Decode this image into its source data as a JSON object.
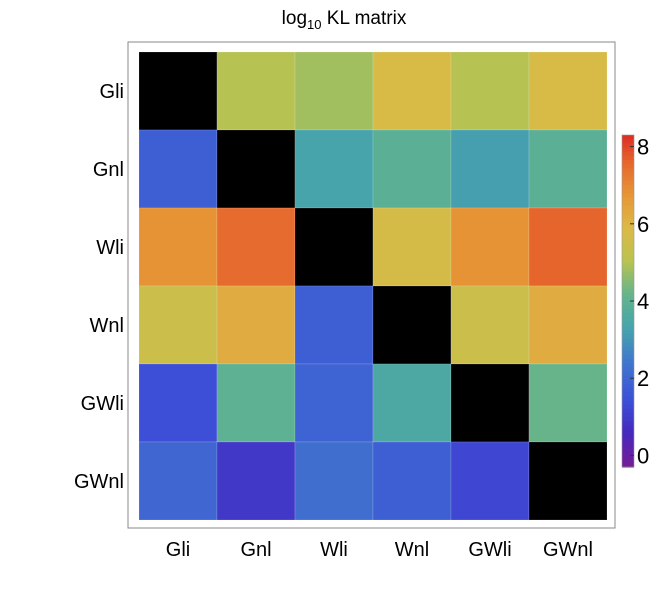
{
  "chart_data": {
    "type": "heatmap",
    "title_main": "log",
    "title_sub": "10",
    "title_rest": " KL matrix",
    "row_labels": [
      "Gli",
      "Gnl",
      "Wli",
      "Wnl",
      "GWli",
      "GWnl"
    ],
    "col_labels": [
      "Gli",
      "Gnl",
      "Wli",
      "Wnl",
      "GWli",
      "GWnl"
    ],
    "values": [
      [
        null,
        5.0,
        4.8,
        5.8,
        5.0,
        5.8
      ],
      [
        1.8,
        null,
        3.3,
        3.9,
        3.2,
        3.9
      ],
      [
        6.8,
        7.5,
        null,
        5.7,
        6.8,
        7.6
      ],
      [
        5.5,
        6.2,
        1.8,
        null,
        5.5,
        6.2
      ],
      [
        1.4,
        4.0,
        1.9,
        3.5,
        null,
        4.2
      ],
      [
        2.0,
        0.9,
        2.2,
        1.8,
        1.2,
        null
      ]
    ],
    "diagonal_color": "#000000",
    "colorbar": {
      "min": -0.3,
      "max": 8.3,
      "ticks": [
        0,
        2,
        4,
        6,
        8
      ]
    }
  }
}
